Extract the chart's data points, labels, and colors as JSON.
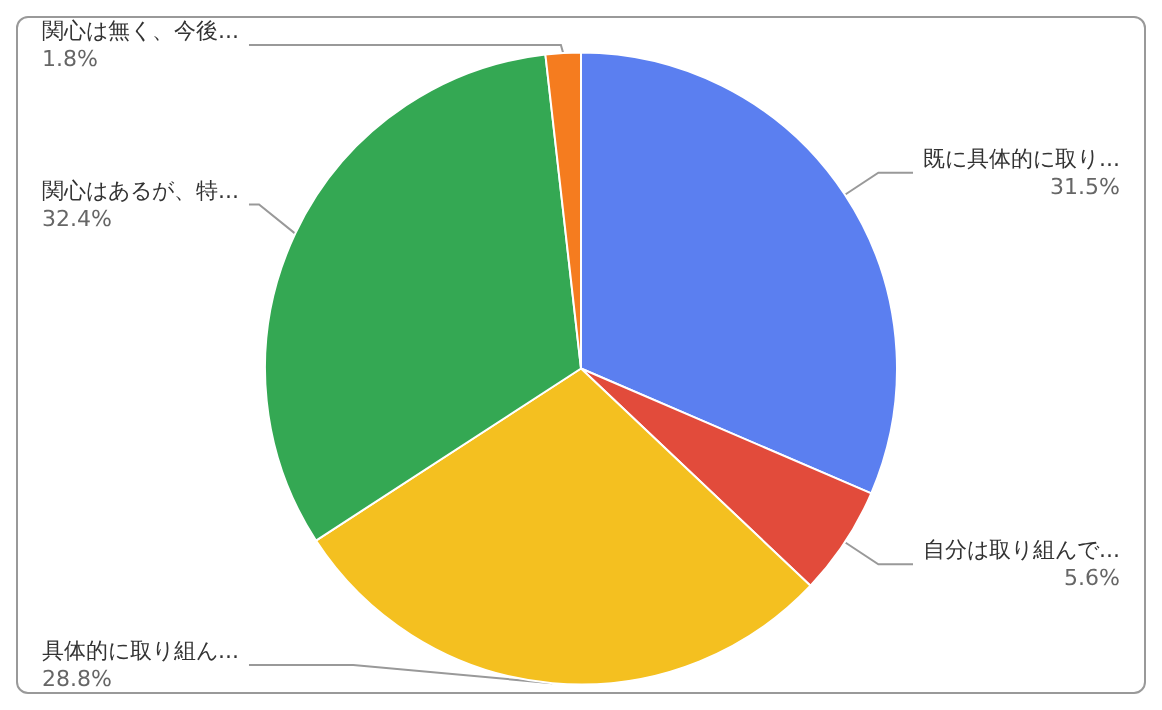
{
  "chart_data": {
    "type": "pie",
    "categories": [
      "既に具体的に取り...",
      "自分は取り組んで...",
      "具体的に取り組ん...",
      "関心はあるが、特...",
      "関心は無く、今後..."
    ],
    "values": [
      31.5,
      5.6,
      28.8,
      32.4,
      1.8
    ],
    "colors": [
      "#5b7ff0",
      "#e24b3b",
      "#f4c020",
      "#34a853",
      "#f57c1f"
    ],
    "value_labels": [
      "31.5%",
      "5.6%",
      "28.8%",
      "32.4%",
      "1.8%"
    ],
    "legend": false
  }
}
